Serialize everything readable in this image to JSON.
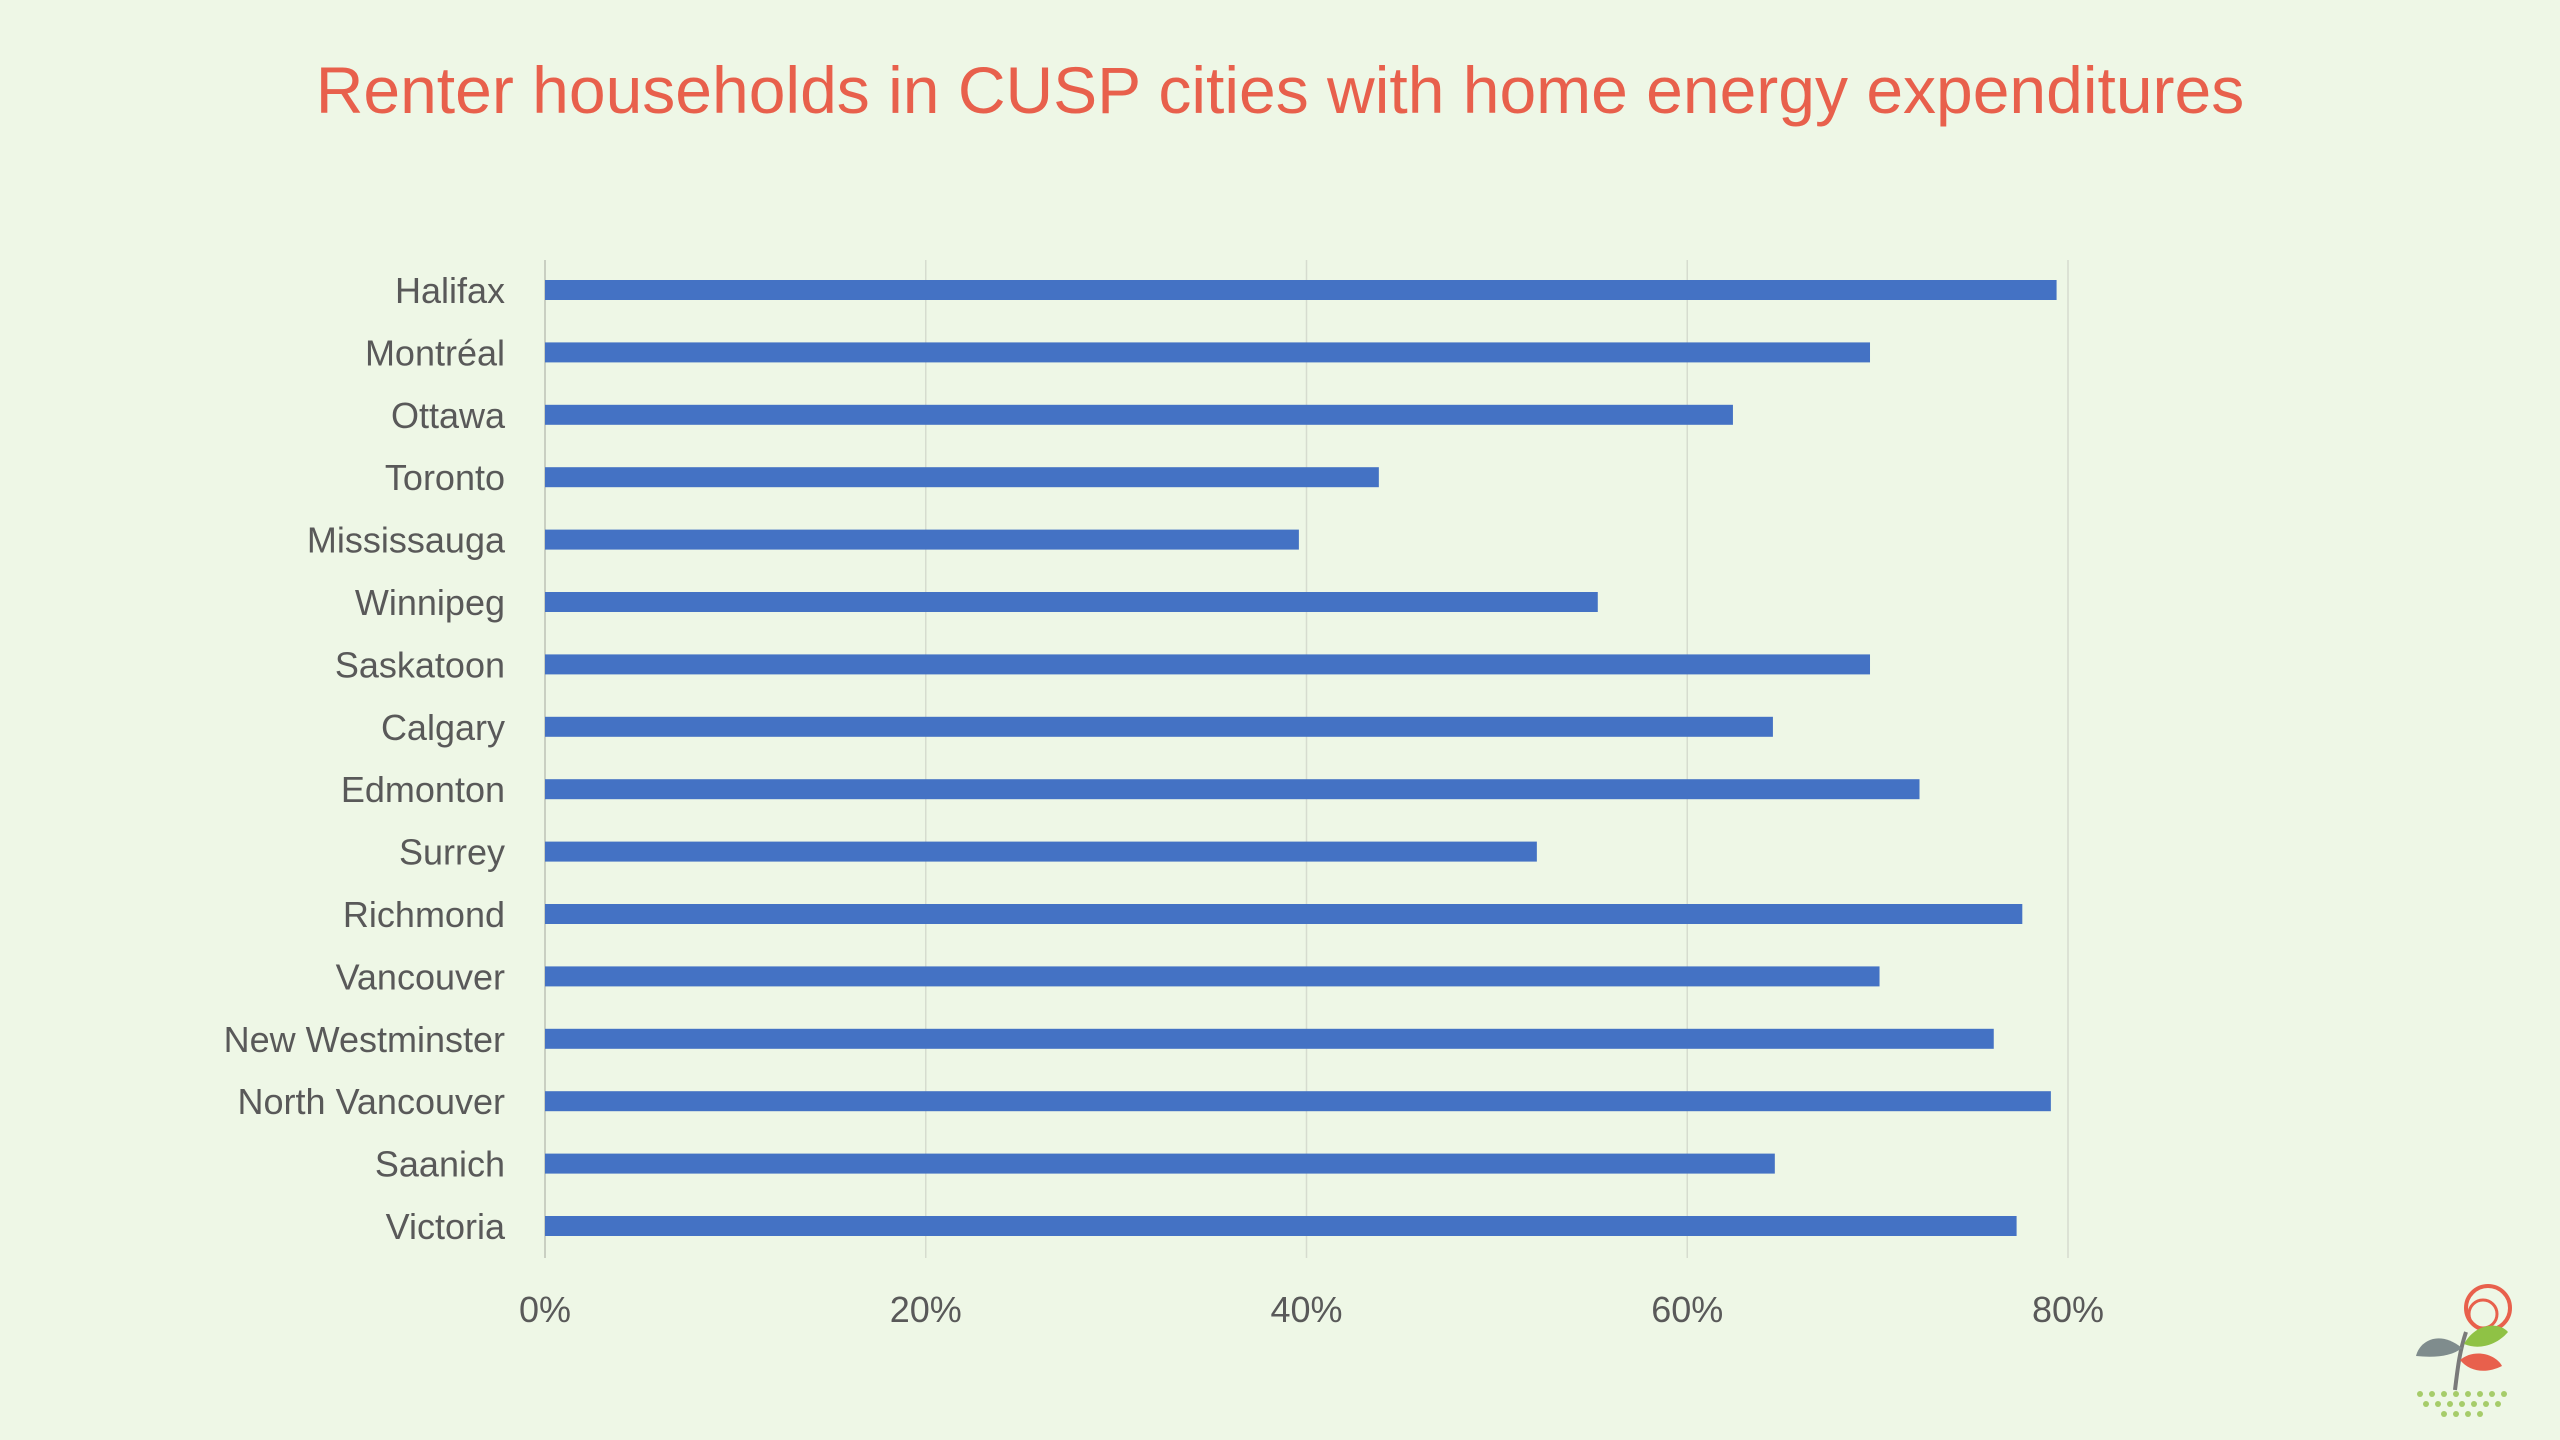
{
  "title": "Renter households in CUSP cities with home energy expenditures",
  "chart_data": {
    "type": "bar",
    "orientation": "horizontal",
    "title": "Renter households in CUSP cities with home energy expenditures",
    "xlabel": "",
    "ylabel": "",
    "xlim": [
      0,
      0.8
    ],
    "xticks": [
      "0%",
      "20%",
      "40%",
      "60%",
      "80%"
    ],
    "grid": "vertical",
    "legend": "none",
    "bar_color": "#4472c4",
    "categories": [
      "Halifax",
      "Montréal",
      "Ottawa",
      "Toronto",
      "Mississauga",
      "Winnipeg",
      "Saskatoon",
      "Calgary",
      "Edmonton",
      "Surrey",
      "Richmond",
      "Vancouver",
      "New Westminster",
      "North Vancouver",
      "Saanich",
      "Victoria"
    ],
    "values": [
      0.794,
      0.696,
      0.624,
      0.438,
      0.396,
      0.553,
      0.696,
      0.645,
      0.722,
      0.521,
      0.776,
      0.701,
      0.761,
      0.791,
      0.646,
      0.773
    ]
  },
  "colors": {
    "background": "#eef7e6",
    "title": "#e8604c",
    "bar": "#4472c4",
    "gridline": "#d6dccf",
    "label": "#595959"
  },
  "logo": {
    "icon": "cusp-leaf-logo-icon"
  }
}
